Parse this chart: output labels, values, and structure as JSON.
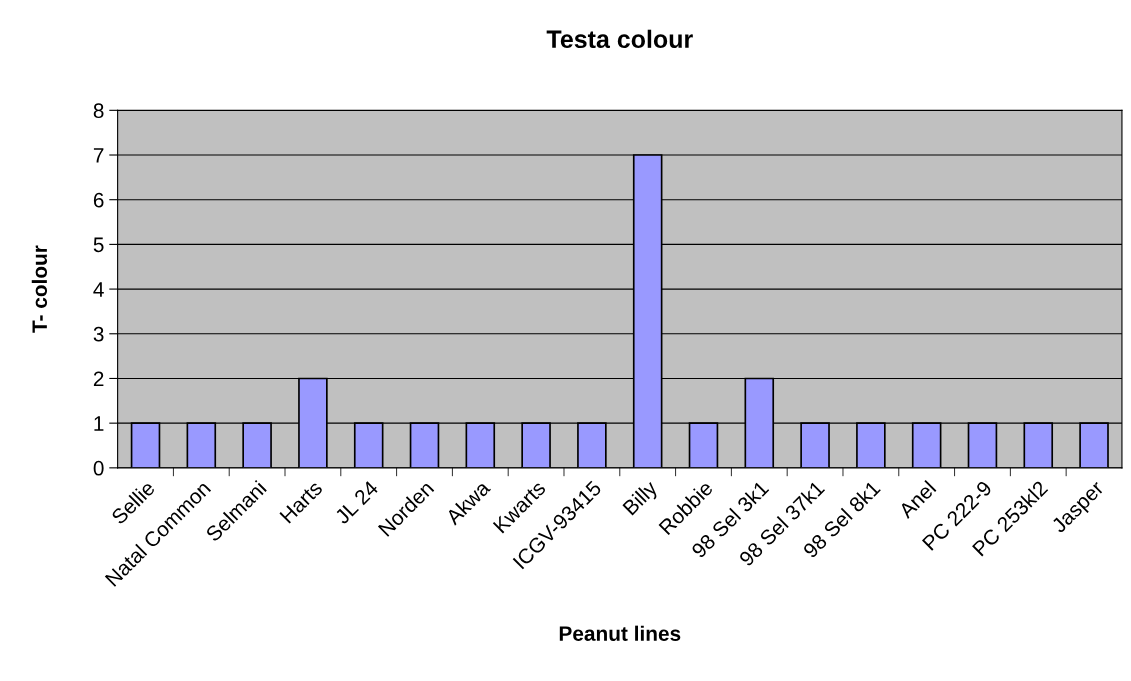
{
  "chart_data": {
    "type": "bar",
    "title": "Testa colour",
    "xlabel": "Peanut lines",
    "ylabel": "T- colour",
    "categories": [
      "Sellie",
      "Natal Common",
      "Selmani",
      "Harts",
      "JL 24",
      "Norden",
      "Akwa",
      "Kwarts",
      "ICGV-93415",
      "Billy",
      "Robbie",
      "98 Sel 3k1",
      "98 Sel 37k1",
      "98 Sel 8k1",
      "Anel",
      "PC 222-9",
      "PC 253kl2",
      "Jasper"
    ],
    "values": [
      1,
      1,
      1,
      2,
      1,
      1,
      1,
      1,
      1,
      7,
      1,
      2,
      1,
      1,
      1,
      1,
      1,
      1
    ],
    "color": "#9999ff",
    "ylim": [
      0,
      8
    ],
    "yticks": [
      0,
      1,
      2,
      3,
      4,
      5,
      6,
      7,
      8
    ],
    "grid": "y",
    "legend": false
  }
}
